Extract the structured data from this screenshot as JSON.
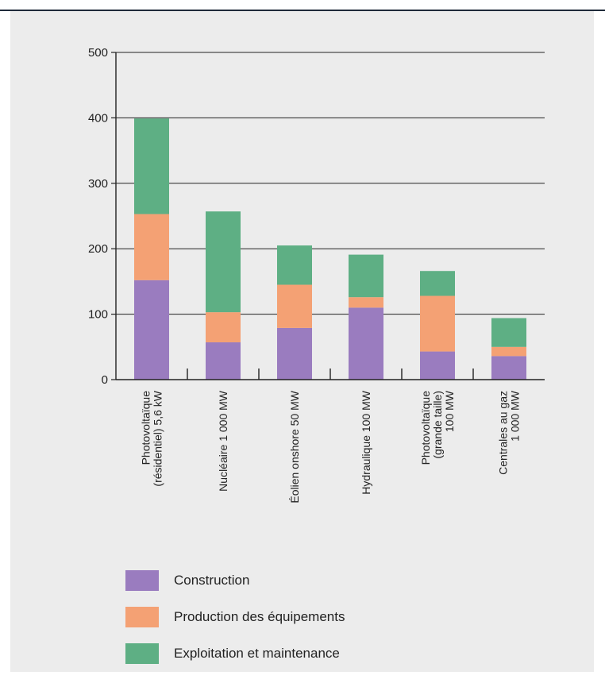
{
  "chart_data": {
    "type": "bar",
    "stacked": true,
    "categories": [
      [
        "Photovoltaïque",
        "(résidentiel) 5,6 kW"
      ],
      [
        "Nucléaire 1 000 MW"
      ],
      [
        "Éolien onshore 50 MW"
      ],
      [
        "Hydraulique 100 MW"
      ],
      [
        "Photovoltaïque",
        "(grande taille)",
        "100 MW"
      ],
      [
        "Centrales au gaz",
        "1 000 MW"
      ]
    ],
    "series": [
      {
        "name": "Construction",
        "color": "#9a7cbf",
        "values": [
          152,
          57,
          79,
          110,
          43,
          36
        ]
      },
      {
        "name": "Production des équipements",
        "color": "#f4a174",
        "values": [
          101,
          46,
          66,
          16,
          85,
          14
        ]
      },
      {
        "name": "Exploitation et maintenance",
        "color": "#5eaf84",
        "values": [
          146,
          154,
          60,
          65,
          38,
          44
        ]
      }
    ],
    "ylim": [
      0,
      500
    ],
    "yticks": [
      "0",
      "100",
      "200",
      "300",
      "400",
      "500"
    ],
    "grid": true,
    "title": "",
    "xlabel": "",
    "ylabel": ""
  }
}
